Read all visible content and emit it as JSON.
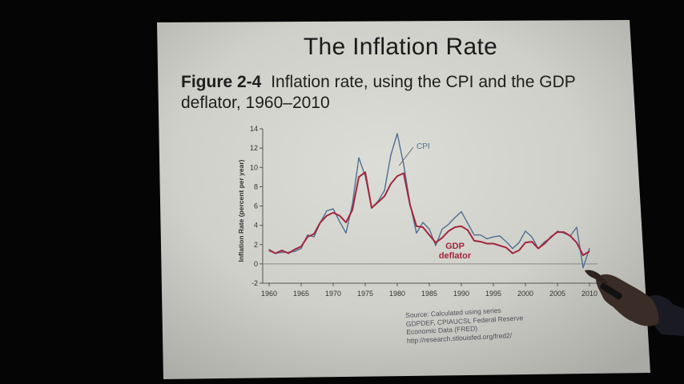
{
  "slide": {
    "title": "The Inflation Rate",
    "figure_label": "Figure 2-4",
    "caption": "Inflation rate, using the CPI and the GDP deflator, 1960–2010",
    "source": "Source: Calculated using series GDPDEF, CPIAUCSL Federal Reserve Economic Data (FRED) http://research.stlouisfed.org/fred2/"
  },
  "chart_data": {
    "type": "line",
    "title": "",
    "xlabel": "",
    "ylabel": "Inflation Rate (percent per year)",
    "xlim": [
      1960,
      2010
    ],
    "ylim": [
      -2,
      14
    ],
    "x_ticks": [
      1960,
      1965,
      1970,
      1975,
      1980,
      1985,
      1990,
      1995,
      2000,
      2005,
      2010
    ],
    "y_ticks": [
      -2,
      0,
      2,
      4,
      6,
      8,
      10,
      12,
      14
    ],
    "grid": false,
    "x": [
      1960,
      1961,
      1962,
      1963,
      1964,
      1965,
      1966,
      1967,
      1968,
      1969,
      1970,
      1971,
      1972,
      1973,
      1974,
      1975,
      1976,
      1977,
      1978,
      1979,
      1980,
      1981,
      1982,
      1983,
      1984,
      1985,
      1986,
      1987,
      1988,
      1989,
      1990,
      1991,
      1992,
      1993,
      1994,
      1995,
      1996,
      1997,
      1998,
      1999,
      2000,
      2001,
      2002,
      2003,
      2004,
      2005,
      2006,
      2007,
      2008,
      2009,
      2010
    ],
    "series": [
      {
        "name": "CPI",
        "color": "#4f6f94",
        "values": [
          1.5,
          1.1,
          1.2,
          1.2,
          1.3,
          1.6,
          3.0,
          2.8,
          4.3,
          5.5,
          5.7,
          4.4,
          3.2,
          6.2,
          11.0,
          9.1,
          5.8,
          6.5,
          7.6,
          11.3,
          13.5,
          10.3,
          6.2,
          3.2,
          4.3,
          3.6,
          1.9,
          3.6,
          4.1,
          4.8,
          5.4,
          4.2,
          3.0,
          3.0,
          2.6,
          2.8,
          2.9,
          2.3,
          1.6,
          2.2,
          3.4,
          2.8,
          1.6,
          2.3,
          2.7,
          3.4,
          3.2,
          2.9,
          3.8,
          -0.4,
          1.6
        ]
      },
      {
        "name": "GDP deflator",
        "color": "#a3263e",
        "values": [
          1.4,
          1.1,
          1.4,
          1.1,
          1.5,
          1.8,
          2.8,
          3.1,
          4.3,
          5.0,
          5.3,
          5.0,
          4.3,
          5.6,
          9.0,
          9.5,
          5.8,
          6.4,
          7.0,
          8.3,
          9.1,
          9.4,
          6.1,
          3.9,
          3.8,
          3.0,
          2.2,
          2.7,
          3.4,
          3.8,
          3.9,
          3.5,
          2.4,
          2.3,
          2.1,
          2.1,
          1.9,
          1.7,
          1.1,
          1.4,
          2.2,
          2.3,
          1.6,
          2.1,
          2.8,
          3.3,
          3.3,
          2.9,
          2.2,
          0.9,
          1.3
        ]
      }
    ],
    "annotations": [
      {
        "text": "CPI",
        "series": "CPI"
      },
      {
        "text": "GDP\ndeflator",
        "series": "GDP deflator"
      }
    ]
  }
}
